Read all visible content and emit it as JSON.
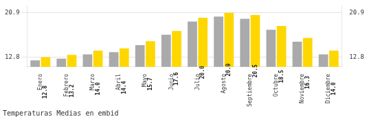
{
  "chart_data": {
    "type": "bar",
    "title": "Temperaturas Medias en embid",
    "categories": [
      "Enero",
      "Febrero",
      "Marzo",
      "Abril",
      "Mayo",
      "Junio",
      "Julio",
      "Agosto",
      "Septiembre",
      "Octubre",
      "Noviembre",
      "Diciembre"
    ],
    "series": [
      {
        "color": "#AAAAAA",
        "values": [
          12.2,
          12.5,
          13.3,
          13.7,
          15.0,
          16.9,
          19.3,
          20.2,
          19.8,
          17.8,
          15.6,
          13.3
        ]
      },
      {
        "color": "#FFD700",
        "values": [
          12.8,
          13.2,
          14.0,
          14.4,
          15.7,
          17.6,
          20.0,
          20.9,
          20.5,
          18.5,
          16.3,
          14.0
        ],
        "value_labels": [
          "12.8",
          "13.2",
          "14.0",
          "14.4",
          "15.7",
          "17.6",
          "20.0",
          "20.9",
          "20.5",
          "18.5",
          "16.3",
          "14.0"
        ],
        "data_labels": true
      }
    ],
    "ylim": [
      11.0,
      22.2
    ],
    "yticks": [
      12.8,
      20.9
    ],
    "y2lim": [
      11.0,
      22.2
    ],
    "y2ticks": [
      12.8,
      20.9
    ],
    "grid": true
  }
}
